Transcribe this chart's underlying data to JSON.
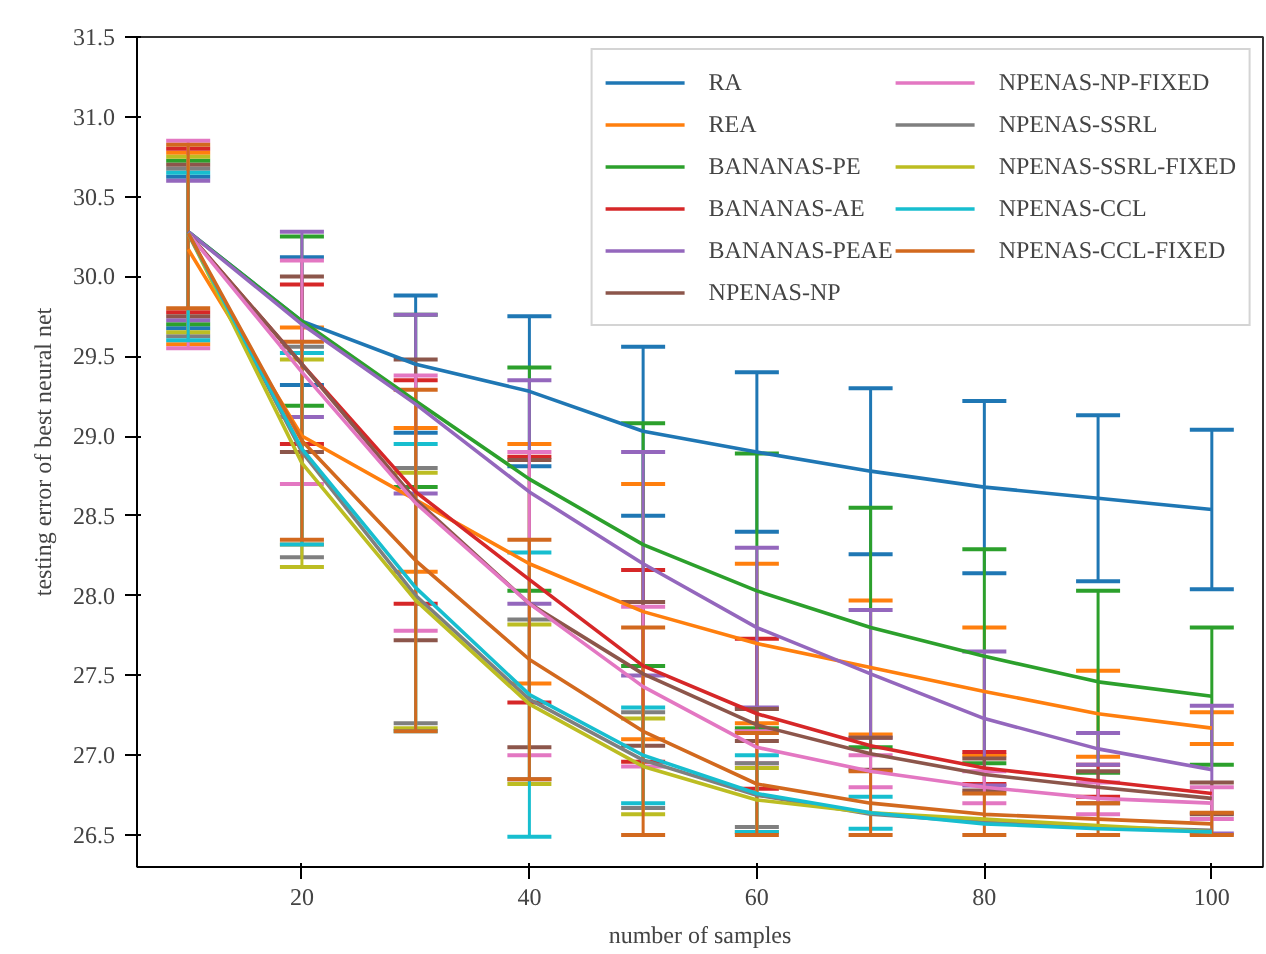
{
  "chart_data": {
    "type": "line",
    "xlabel": "number of samples",
    "ylabel": "testing error of best neural net",
    "x": [
      10,
      20,
      30,
      40,
      50,
      60,
      70,
      80,
      90,
      100
    ],
    "xlim": [
      5.5,
      104.5
    ],
    "xticks": [
      20,
      40,
      60,
      80,
      100
    ],
    "ylim": [
      26.3,
      31.5
    ],
    "yticks": [
      26.5,
      {
        "value": 27,
        "label": "27.0"
      },
      27.5,
      {
        "value": 28,
        "label": "28.0"
      },
      28.5,
      {
        "value": 29,
        "label": "29.0"
      },
      29.5,
      {
        "value": 30,
        "label": "30.0"
      },
      30.5,
      {
        "value": 31,
        "label": "31.0"
      },
      31.5
    ],
    "grid": false,
    "legend": "top right",
    "marker": "none",
    "line_style": "solid",
    "series": [
      {
        "name": "RA",
        "color": "#1f77b4",
        "values": [
          30.28,
          29.72,
          29.45,
          29.28,
          29.03,
          28.9,
          28.78,
          28.68,
          28.61,
          28.54
        ],
        "errors": [
          [
            29.675,
            30.625
          ],
          0.4,
          0.43,
          0.47,
          0.53,
          0.5,
          0.52,
          0.54,
          0.52,
          0.5
        ]
      },
      {
        "name": "REA",
        "color": "#ff7f0e",
        "values": [
          30.17,
          29.0,
          28.6,
          28.2,
          27.9,
          27.7,
          27.55,
          27.4,
          27.26,
          27.17
        ],
        "errors": [
          [
            29.575,
            30.775
          ],
          0.68,
          0.45,
          0.75,
          0.8,
          0.5,
          0.42,
          0.4,
          0.27,
          0.1
        ]
      },
      {
        "name": "BANANAS-PE",
        "color": "#2ca02c",
        "values": [
          30.28,
          29.72,
          29.22,
          28.73,
          28.32,
          28.03,
          27.8,
          27.62,
          27.46,
          27.37
        ],
        "errors": [
          [
            29.7,
            30.725
          ],
          0.53,
          0.54,
          0.7,
          0.76,
          0.86,
          0.75,
          0.67,
          0.57,
          0.43
        ]
      },
      {
        "name": "BANANAS-AE",
        "color": "#d62728",
        "values": [
          30.27,
          29.45,
          28.65,
          28.1,
          27.56,
          27.26,
          27.06,
          26.92,
          26.84,
          26.76
        ],
        "errors": [
          [
            29.775,
            30.8
          ],
          0.5,
          0.7,
          0.77,
          0.6,
          0.47,
          null,
          0.1,
          0.1,
          null
        ]
      },
      {
        "name": "BANANAS-PEAE",
        "color": "#9467bd",
        "values": [
          30.28,
          29.7,
          29.2,
          28.65,
          28.2,
          27.8,
          27.51,
          27.23,
          27.04,
          26.91
        ],
        "errors": [
          [
            29.725,
            30.6
          ],
          0.58,
          0.56,
          0.7,
          0.7,
          0.5,
          0.4,
          0.42,
          0.1,
          0.4
        ]
      },
      {
        "name": "NPENAS-NP",
        "color": "#8c564b",
        "values": [
          30.27,
          29.45,
          28.6,
          27.95,
          27.51,
          27.19,
          27.01,
          26.88,
          26.8,
          26.73
        ],
        "errors": [
          [
            29.75,
            30.7
          ],
          0.55,
          0.88,
          0.9,
          0.45,
          0.1,
          0.1,
          0.1,
          0.1,
          0.1
        ]
      },
      {
        "name": "NPENAS-NP-FIXED",
        "color": "#e377c2",
        "values": [
          30.27,
          29.4,
          28.58,
          27.95,
          27.43,
          27.05,
          26.9,
          26.8,
          26.73,
          26.7
        ],
        "errors": [
          [
            29.55,
            30.85
          ],
          0.7,
          0.8,
          0.95,
          0.5,
          0.1,
          0.1,
          0.1,
          0.1,
          0.1
        ]
      },
      {
        "name": "NPENAS-SSRL",
        "color": "#7f7f7f",
        "values": [
          30.27,
          28.9,
          28.0,
          27.35,
          26.97,
          26.75,
          26.63,
          26.58,
          26.55,
          26.53
        ],
        "errors": [
          [
            29.625,
            30.675
          ],
          0.66,
          0.8,
          0.5,
          0.3,
          0.2,
          null,
          null,
          null,
          null
        ]
      },
      {
        "name": "NPENAS-SSRL-FIXED",
        "color": "#bcbd22",
        "values": [
          30.27,
          28.83,
          27.97,
          27.32,
          26.93,
          26.72,
          26.64,
          26.6,
          26.56,
          26.52
        ],
        "errors": [
          [
            29.65,
            30.75
          ],
          0.65,
          0.8,
          0.5,
          0.3,
          0.2,
          null,
          null,
          null,
          null
        ]
      },
      {
        "name": "NPENAS-CCL",
        "color": "#17becf",
        "values": [
          30.27,
          28.92,
          28.05,
          27.38,
          27.0,
          26.76,
          26.64,
          26.57,
          26.54,
          26.52
        ],
        "errors": [
          [
            29.6,
            30.65
          ],
          0.6,
          0.9,
          0.89,
          0.3,
          0.24,
          0.1,
          null,
          null,
          null
        ]
      },
      {
        "name": "NPENAS-CCL-FIXED",
        "color": "#d2691e",
        "values": [
          30.27,
          28.97,
          28.22,
          27.6,
          27.15,
          26.82,
          26.7,
          26.63,
          26.6,
          26.57
        ],
        "errors": [
          [
            29.8,
            30.825
          ],
          0.62,
          1.07,
          0.75,
          0.65,
          0.32,
          0.2,
          0.13,
          0.1,
          0.07
        ]
      }
    ]
  }
}
